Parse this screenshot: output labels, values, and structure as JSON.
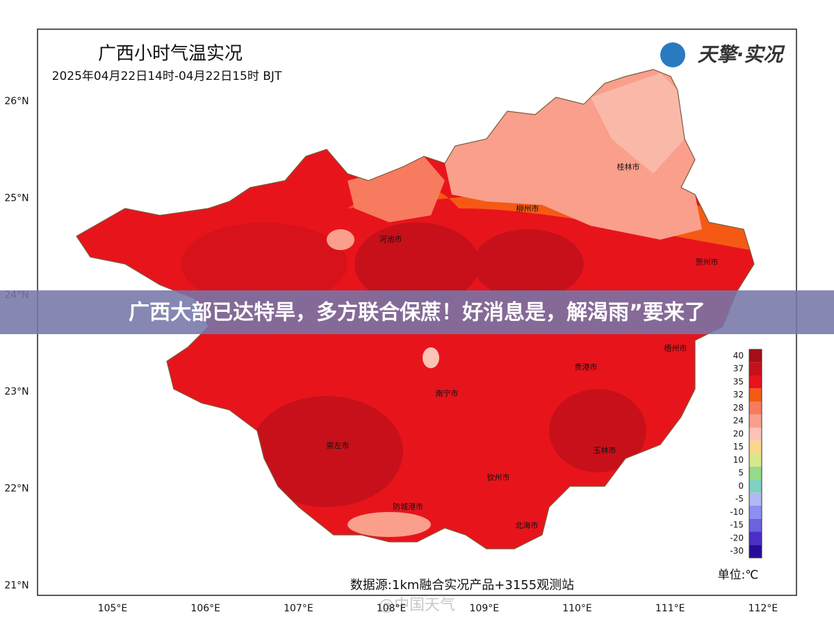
{
  "header": {
    "title": "广西小时气温实况",
    "subtitle": "2025年04月22日14时-04月22日15时 BJT",
    "logo": "天擎·实况"
  },
  "banner": "广西大部已达特旱，多方联合保蔗！好消息是，解渴雨”要来了",
  "latitudes": [
    "26°N",
    "25°N",
    "24°N",
    "23°N",
    "22°N",
    "21°N"
  ],
  "longitudes": [
    "105°E",
    "106°E",
    "107°E",
    "108°E",
    "109°E",
    "110°E",
    "111°E",
    "112°E"
  ],
  "cities": [
    "桂林市",
    "柳州市",
    "河池市",
    "贺州市",
    "梧州市",
    "贵港市",
    "南宁市",
    "崇左市",
    "玉林市",
    "钦州市",
    "防城港市",
    "北海市"
  ],
  "legend": {
    "values": [
      40,
      37,
      35,
      32,
      28,
      24,
      20,
      15,
      10,
      5,
      0,
      -5,
      -10,
      -15,
      -20,
      -30
    ],
    "colors": [
      "#a50f15",
      "#c8101a",
      "#e8141c",
      "#f55a14",
      "#f77b5e",
      "#f99f8c",
      "#fbc3b5",
      "#fbd68e",
      "#d7e88a",
      "#96d98a",
      "#7fd1c0",
      "#b3b8f5",
      "#8c8ef0",
      "#6b62e0",
      "#4a2fc8",
      "#2a0a9a"
    ],
    "unit": "单位:℃"
  },
  "source": "数据源:1km融合实况产品+3155观测站",
  "watermark": "@中国天气"
}
